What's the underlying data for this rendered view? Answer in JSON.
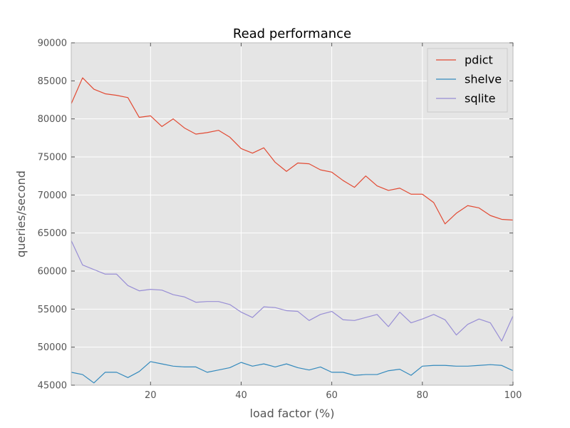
{
  "chart_data": {
    "type": "line",
    "title": "Read performance",
    "xlabel": "load factor (%)",
    "ylabel": "queries/second",
    "xlim": [
      2.5,
      100
    ],
    "ylim": [
      45000,
      90000
    ],
    "x_ticks": [
      20,
      40,
      60,
      80,
      100
    ],
    "y_ticks": [
      45000,
      50000,
      55000,
      60000,
      65000,
      70000,
      75000,
      80000,
      85000,
      90000
    ],
    "x_tick_labels": [
      "20",
      "40",
      "60",
      "80",
      "100"
    ],
    "y_tick_labels": [
      "45000",
      "50000",
      "55000",
      "60000",
      "65000",
      "70000",
      "75000",
      "80000",
      "85000",
      "90000"
    ],
    "grid": true,
    "legend_position": "top-right",
    "background": "#e5e5e5",
    "x": [
      2.5,
      5,
      7.5,
      10,
      12.5,
      15,
      17.5,
      20,
      22.5,
      25,
      27.5,
      30,
      32.5,
      35,
      37.5,
      40,
      42.5,
      45,
      47.5,
      50,
      52.5,
      55,
      57.5,
      60,
      62.5,
      65,
      67.5,
      70,
      72.5,
      75,
      77.5,
      80,
      82.5,
      85,
      87.5,
      90,
      92.5,
      95,
      97.5,
      100
    ],
    "series": [
      {
        "name": "pdict",
        "color": "#e24a33",
        "values": [
          82000,
          85400,
          83900,
          83300,
          83100,
          82800,
          80200,
          80400,
          79000,
          80000,
          78800,
          78000,
          78200,
          78500,
          77600,
          76100,
          75500,
          76200,
          74300,
          73100,
          74200,
          74100,
          73300,
          73000,
          71900,
          71000,
          72500,
          71200,
          70600,
          70900,
          70100,
          70100,
          69000,
          66200,
          67600,
          68600,
          68300,
          67300,
          66800,
          66700
        ]
      },
      {
        "name": "shelve",
        "color": "#348abd",
        "values": [
          46700,
          46400,
          45300,
          46700,
          46700,
          46000,
          46800,
          48100,
          47800,
          47500,
          47400,
          47400,
          46700,
          47000,
          47300,
          48000,
          47500,
          47800,
          47400,
          47800,
          47300,
          47000,
          47400,
          46700,
          46700,
          46300,
          46400,
          46400,
          46900,
          47100,
          46300,
          47500,
          47600,
          47600,
          47500,
          47500,
          47600,
          47700,
          47600,
          46900
        ]
      },
      {
        "name": "sqlite",
        "color": "#988ed5",
        "values": [
          64000,
          60800,
          60200,
          59600,
          59600,
          58100,
          57400,
          57600,
          57500,
          56900,
          56600,
          55900,
          56000,
          56000,
          55600,
          54600,
          53900,
          55300,
          55200,
          54800,
          54700,
          53500,
          54300,
          54700,
          53600,
          53500,
          53900,
          54300,
          52700,
          54600,
          53200,
          53700,
          54300,
          53600,
          51600,
          53000,
          53700,
          53200,
          50800,
          54100
        ]
      }
    ]
  }
}
